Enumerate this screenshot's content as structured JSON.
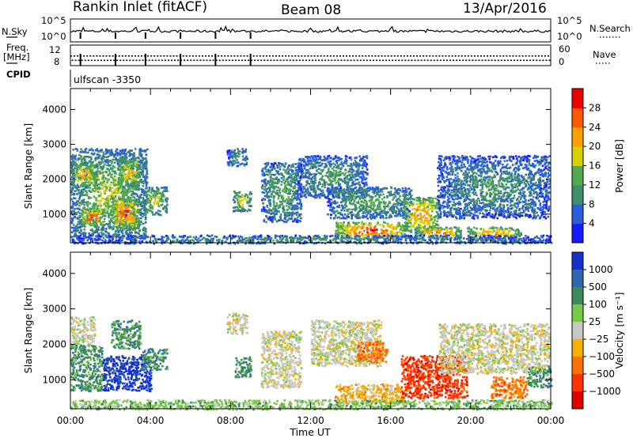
{
  "header": {
    "station": "Rankin Inlet (fitACF)",
    "beam": "Beam 08",
    "date": "13/Apr/2016"
  },
  "nsky_panel": {
    "left_label": "N.Sky",
    "right_label": "N.Search",
    "left_ticks": [
      "10^5",
      "10^0"
    ],
    "right_ticks": [
      "10^5",
      "10^0"
    ]
  },
  "freq_panel": {
    "left_label_1": "Freq.",
    "left_label_2": "[MHz]",
    "left_ticks": [
      "12",
      "8"
    ],
    "right_label": "Nave",
    "right_ticks": [
      "60",
      "0"
    ]
  },
  "cpid_panel": {
    "label": "CPID",
    "value": "ulfscan -3350"
  },
  "chart_data": [
    {
      "type": "heatmap",
      "name": "power",
      "xlabel": "Time UT",
      "ylabel": "Slant Range [km]",
      "xlim_hours": [
        0,
        24
      ],
      "ylim": [
        180,
        4600
      ],
      "y_ticks": [
        1000,
        2000,
        3000,
        4000
      ],
      "x_tick_labels": [
        "00:00",
        "04:00",
        "08:00",
        "12:00",
        "16:00",
        "20:00",
        "00:00"
      ],
      "colorbar": {
        "label": "Power [dB]",
        "ticks": [
          "4",
          "8",
          "12",
          "16",
          "20",
          "24",
          "28"
        ],
        "colors": [
          "#1a1aff",
          "#2a5dd8",
          "#3e8e6c",
          "#54a84f",
          "#d8d000",
          "#ffa000",
          "#ff5a00",
          "#ee0000"
        ]
      },
      "blobs": [
        {
          "t0": 0.0,
          "t1": 3.8,
          "r0": 350,
          "r1": 2900,
          "v": 0.55
        },
        {
          "t0": 0.5,
          "t1": 1.6,
          "r0": 700,
          "r1": 1200,
          "v": 0.92
        },
        {
          "t0": 2.0,
          "t1": 3.4,
          "r0": 600,
          "r1": 1500,
          "v": 0.9
        },
        {
          "t0": 2.3,
          "t1": 3.5,
          "r0": 1800,
          "r1": 2600,
          "v": 0.7
        },
        {
          "t0": 0.0,
          "t1": 1.3,
          "r0": 1800,
          "r1": 2500,
          "v": 0.75
        },
        {
          "t0": 3.6,
          "t1": 4.8,
          "r0": 1000,
          "r1": 1800,
          "v": 0.6
        },
        {
          "t0": 7.8,
          "t1": 8.8,
          "r0": 2400,
          "r1": 2900,
          "v": 0.4
        },
        {
          "t0": 8.1,
          "t1": 9.0,
          "r0": 1100,
          "r1": 1700,
          "v": 0.6
        },
        {
          "t0": 9.5,
          "t1": 11.5,
          "r0": 800,
          "r1": 2500,
          "v": 0.45
        },
        {
          "t0": 11.3,
          "t1": 14.8,
          "r0": 1500,
          "r1": 2700,
          "v": 0.4
        },
        {
          "t0": 13.2,
          "t1": 16.8,
          "r0": 300,
          "r1": 800,
          "v": 0.95
        },
        {
          "t0": 12.8,
          "t1": 17.0,
          "r0": 900,
          "r1": 1800,
          "v": 0.45
        },
        {
          "t0": 16.6,
          "t1": 18.4,
          "r0": 500,
          "r1": 1500,
          "v": 0.8
        },
        {
          "t0": 17.2,
          "t1": 19.5,
          "r0": 300,
          "r1": 650,
          "v": 0.85
        },
        {
          "t0": 18.3,
          "t1": 23.9,
          "r0": 900,
          "r1": 2700,
          "v": 0.38
        },
        {
          "t0": 19.8,
          "t1": 22.5,
          "r0": 250,
          "r1": 650,
          "v": 0.8
        },
        {
          "t0": 0.0,
          "t1": 24.0,
          "r0": 180,
          "r1": 420,
          "v": 0.35
        }
      ]
    },
    {
      "type": "heatmap",
      "name": "velocity",
      "xlabel": "Time UT",
      "ylabel": "Slant Range [km]",
      "xlim_hours": [
        0,
        24
      ],
      "ylim": [
        180,
        4600
      ],
      "y_ticks": [
        1000,
        2000,
        3000,
        4000
      ],
      "x_tick_labels": [
        "00:00",
        "04:00",
        "08:00",
        "12:00",
        "16:00",
        "20:00",
        "00:00"
      ],
      "colorbar": {
        "label": "Velocity [m s⁻¹]",
        "ticks": [
          "1000",
          "500",
          "100",
          "25",
          "−25",
          "−100",
          "−500",
          "−1000"
        ],
        "colors": [
          "#1532c8",
          "#2f68b0",
          "#3c8a5c",
          "#7ac84a",
          "#c8c8c0",
          "#f5b000",
          "#ff7000",
          "#ff3200",
          "#e00000"
        ]
      },
      "blobs": [
        {
          "t0": 0.0,
          "t1": 1.2,
          "r0": 2000,
          "r1": 2800,
          "v": 4
        },
        {
          "t0": 0.0,
          "t1": 1.6,
          "r0": 700,
          "r1": 2000,
          "v": 2
        },
        {
          "t0": 1.6,
          "t1": 4.0,
          "r0": 700,
          "r1": 1700,
          "v": 0
        },
        {
          "t0": 2.0,
          "t1": 3.5,
          "r0": 1900,
          "r1": 2700,
          "v": 2
        },
        {
          "t0": 3.5,
          "t1": 4.8,
          "r0": 1300,
          "r1": 1900,
          "v": 2
        },
        {
          "t0": 8.2,
          "t1": 9.0,
          "r0": 1100,
          "r1": 1700,
          "v": 2
        },
        {
          "t0": 7.8,
          "t1": 8.8,
          "r0": 2300,
          "r1": 2900,
          "v": 4
        },
        {
          "t0": 9.5,
          "t1": 11.5,
          "r0": 800,
          "r1": 2400,
          "v": 4
        },
        {
          "t0": 12.0,
          "t1": 15.5,
          "r0": 1400,
          "r1": 2700,
          "v": 4
        },
        {
          "t0": 13.2,
          "t1": 16.8,
          "r0": 350,
          "r1": 900,
          "v": 5
        },
        {
          "t0": 14.3,
          "t1": 15.8,
          "r0": 1500,
          "r1": 2100,
          "v": 6
        },
        {
          "t0": 16.5,
          "t1": 19.8,
          "r0": 500,
          "r1": 1700,
          "v": 7
        },
        {
          "t0": 18.4,
          "t1": 23.9,
          "r0": 1200,
          "r1": 2600,
          "v": 4
        },
        {
          "t0": 21.0,
          "t1": 22.8,
          "r0": 500,
          "r1": 1100,
          "v": 6
        },
        {
          "t0": 22.8,
          "t1": 24.0,
          "r0": 800,
          "r1": 1400,
          "v": 2
        },
        {
          "t0": 0.0,
          "t1": 24.0,
          "r0": 180,
          "r1": 450,
          "v": 3
        }
      ]
    }
  ]
}
